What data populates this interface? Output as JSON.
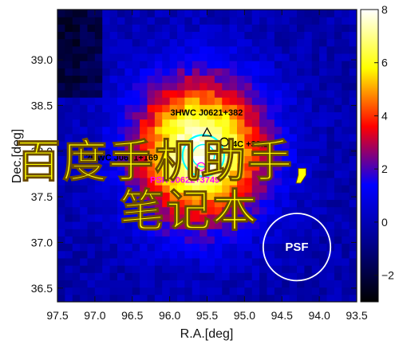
{
  "chart_data": {
    "type": "heatmap",
    "title": "",
    "xlabel": "R.A.[deg]",
    "ylabel": "Dec.[deg]",
    "xlim": [
      97.5,
      93.5
    ],
    "ylim": [
      36.35,
      39.55
    ],
    "x_ticks": [
      "97.5",
      "97.0",
      "96.5",
      "96.0",
      "95.5",
      "95.0",
      "94.5",
      "94.0",
      "93.5"
    ],
    "y_ticks": [
      "36.5",
      "37.0",
      "37.5",
      "38.0",
      "38.5",
      "39.0"
    ],
    "colorbar": {
      "range": [
        -3,
        8
      ],
      "ticks": [
        "−2",
        "0",
        "2",
        "4",
        "6",
        "8"
      ],
      "colormap": [
        "#000000",
        "#00008c",
        "#0000ff",
        "#ff0000",
        "#ffff00",
        "#ffffff"
      ]
    },
    "peak": {
      "ra": 95.6,
      "dec": 38.0,
      "value": 8.0
    },
    "sources": [
      {
        "label": "3HWC J0621+382",
        "ra": 95.5,
        "dec": 38.2,
        "marker": "triangle",
        "color": "#000000"
      },
      {
        "label": "4C +38.13",
        "ra": 95.27,
        "dec": 38.1,
        "marker": "circle",
        "color": "#000000"
      },
      {
        "label": "2HWC J0631+169",
        "ra": 95.95,
        "dec": 37.95,
        "marker": "none",
        "color": "#000000"
      },
      {
        "label": "PSR J0622+3749",
        "ra": 95.58,
        "dec": 37.83,
        "marker": "circle",
        "color": "#ff00ff"
      }
    ],
    "psf": {
      "label": "PSF",
      "ra": 94.3,
      "dec": 36.95,
      "radius_deg": 0.45
    }
  },
  "watermark": {
    "line1": "百度手机助手,",
    "line2": "笔记本"
  },
  "colors": {
    "accent_cyan": "#00ffff",
    "psr_magenta": "#ff00ff",
    "watermark_fill": "#ffff00"
  }
}
